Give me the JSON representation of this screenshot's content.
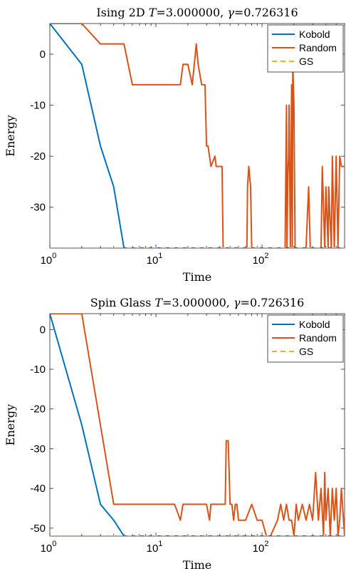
{
  "chart_data": [
    {
      "type": "line",
      "title_pre": "Ising 2D ",
      "title_T": "T",
      "title_mid": "=3.000000, ",
      "title_gamma": "γ",
      "title_post": "=0.726316",
      "xlabel": "Time",
      "ylabel": "Energy",
      "xscale": "log",
      "xlim": [
        1,
        600
      ],
      "ylim": [
        -38,
        6
      ],
      "yticks": [
        0,
        -10,
        -20,
        -30
      ],
      "ytick_labels": [
        "0",
        "-10",
        "-20",
        "-30"
      ],
      "xticks": [
        1,
        10,
        100
      ],
      "xtick_base": "10",
      "xtick_exps": [
        "0",
        "1",
        "2"
      ],
      "legend_position": "top-right",
      "series": [
        {
          "name": "Kobold",
          "color": "#0072BD",
          "style": "solid",
          "x": [
            1,
            2,
            3,
            4,
            5,
            600
          ],
          "y": [
            6,
            -2,
            -18,
            -26,
            -38,
            -38
          ]
        },
        {
          "name": "Random",
          "color": "#D95319",
          "style": "solid",
          "x": [
            1,
            2,
            3,
            5,
            6,
            10,
            12,
            17,
            18,
            20,
            22,
            23,
            24,
            25,
            27,
            29,
            30,
            31,
            33,
            36,
            37,
            42,
            43,
            72,
            73,
            75,
            78,
            80,
            85,
            165,
            170,
            172,
            175,
            178,
            180,
            185,
            188,
            190,
            193,
            195,
            200,
            205,
            210,
            230,
            260,
            275,
            285,
            300,
            320,
            360,
            370,
            390,
            400,
            420,
            425,
            450,
            460,
            480,
            500,
            520,
            540,
            560,
            600
          ],
          "y": [
            6,
            6,
            2,
            2,
            -6,
            -6,
            -6,
            -6,
            -2,
            -2,
            -6,
            -2,
            2,
            -2,
            -6,
            -6,
            -18,
            -18,
            -22,
            -20,
            -22,
            -22,
            -38,
            -38,
            -26,
            -22,
            -26,
            -38,
            -38,
            -38,
            -10,
            -38,
            -24,
            -20,
            -10,
            -38,
            -20,
            -6,
            -38,
            -2,
            -10,
            -38,
            -38,
            -38,
            -38,
            -26,
            -38,
            -38,
            -38,
            -38,
            -22,
            -38,
            -26,
            -38,
            -26,
            -38,
            -20,
            -38,
            -20,
            -38,
            -20,
            -22,
            -22
          ]
        },
        {
          "name": "GS",
          "color": "#EDB120",
          "style": "dashed",
          "x": [
            1,
            600
          ],
          "y": [
            -38,
            -38
          ]
        }
      ]
    },
    {
      "type": "line",
      "title_pre": "Spin Glass ",
      "title_T": "T",
      "title_mid": "=3.000000, ",
      "title_gamma": "γ",
      "title_post": "=0.726316",
      "xlabel": "Time",
      "ylabel": "Energy",
      "xscale": "log",
      "xlim": [
        1,
        600
      ],
      "ylim": [
        -52,
        4
      ],
      "yticks": [
        0,
        -10,
        -20,
        -30,
        -40,
        -50
      ],
      "ytick_labels": [
        "0",
        "-10",
        "-20",
        "-30",
        "-40",
        "-50"
      ],
      "xticks": [
        1,
        10,
        100
      ],
      "xtick_base": "10",
      "xtick_exps": [
        "0",
        "1",
        "2"
      ],
      "legend_position": "top-right",
      "series": [
        {
          "name": "Kobold",
          "color": "#0072BD",
          "style": "solid",
          "x": [
            1,
            2,
            3,
            4,
            5,
            600
          ],
          "y": [
            4,
            -24,
            -44,
            -48,
            -52,
            -52
          ]
        },
        {
          "name": "Random",
          "color": "#D95319",
          "style": "solid",
          "x": [
            1,
            2,
            4,
            5,
            15,
            17,
            18,
            30,
            32,
            33,
            45,
            46,
            48,
            50,
            52,
            54,
            56,
            58,
            60,
            65,
            70,
            80,
            90,
            100,
            110,
            120,
            140,
            150,
            160,
            170,
            180,
            190,
            200,
            210,
            220,
            240,
            260,
            280,
            300,
            320,
            340,
            360,
            380,
            390,
            400,
            420,
            440,
            460,
            480,
            500,
            520,
            540,
            560,
            600
          ],
          "y": [
            4,
            4,
            -44,
            -44,
            -44,
            -48,
            -44,
            -44,
            -48,
            -44,
            -44,
            -28,
            -28,
            -44,
            -44,
            -48,
            -44,
            -44,
            -48,
            -48,
            -48,
            -44,
            -48,
            -48,
            -52,
            -52,
            -48,
            -44,
            -48,
            -44,
            -48,
            -48,
            -52,
            -44,
            -48,
            -44,
            -48,
            -44,
            -48,
            -36,
            -48,
            -40,
            -52,
            -36,
            -48,
            -40,
            -52,
            -40,
            -48,
            -40,
            -52,
            -48,
            -40,
            -52
          ]
        },
        {
          "name": "GS",
          "color": "#EDB120",
          "style": "dashed",
          "x": [
            1,
            600
          ],
          "y": [
            -52,
            -52
          ]
        }
      ]
    }
  ]
}
